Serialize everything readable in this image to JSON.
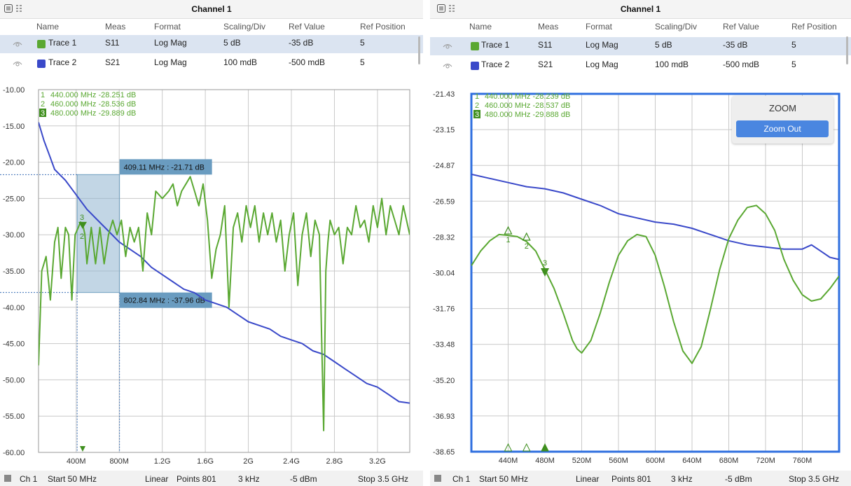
{
  "colors": {
    "trace1": "#5aa832",
    "trace2": "#3a49c9",
    "accent": "#2f6fdf",
    "selection": "#dbe4f1",
    "marker": "#3f8f1e"
  },
  "icons": {
    "menu": "list-icon",
    "grid": "grid-icon",
    "eye": "eye-icon"
  },
  "left": {
    "title": "Channel 1",
    "headers": [
      "Name",
      "Meas",
      "Format",
      "Scaling/Div",
      "Ref Value",
      "Ref Position"
    ],
    "rows": [
      {
        "name": "Trace 1",
        "meas": "S11",
        "format": "Log Mag",
        "scaling": "5 dB",
        "ref_value": "-35 dB",
        "ref_position": "5"
      },
      {
        "name": "Trace 2",
        "meas": "S21",
        "format": "Log Mag",
        "scaling": "100 mdB",
        "ref_value": "-500 mdB",
        "ref_position": "5"
      }
    ],
    "markers": [
      {
        "num": "1",
        "text": "440.000 MHz  -28.251 dB"
      },
      {
        "num": "2",
        "text": "460.000 MHz  -28.536 dB"
      },
      {
        "num": "3",
        "text": "480.000 MHz  -29.889 dB"
      }
    ],
    "zoom_labels": {
      "top": "409.11 MHz : -21.71 dB",
      "bottom": "802.84 MHz : -37.96 dB"
    },
    "footer": {
      "ch": "Ch 1",
      "start": "Start 50 MHz",
      "sweep": "Linear",
      "points": "Points 801",
      "ifbw": "3 kHz",
      "power": "-5 dBm",
      "stop": "Stop 3.5 GHz"
    }
  },
  "right": {
    "title": "Channel 1",
    "headers": [
      "Name",
      "Meas",
      "Format",
      "Scaling/Div",
      "Ref Value",
      "Ref Position"
    ],
    "rows": [
      {
        "name": "Trace 1",
        "meas": "S11",
        "format": "Log Mag",
        "scaling": "5 dB",
        "ref_value": "-35 dB",
        "ref_position": "5"
      },
      {
        "name": "Trace 2",
        "meas": "S21",
        "format": "Log Mag",
        "scaling": "100 mdB",
        "ref_value": "-500 mdB",
        "ref_position": "5"
      }
    ],
    "markers": [
      {
        "num": "1",
        "text": "440.000 MHz  -28.239 dB"
      },
      {
        "num": "2",
        "text": "460.000 MHz  -28.537 dB"
      },
      {
        "num": "3",
        "text": "480.000 MHz  -29.888 dB"
      }
    ],
    "zoom": {
      "title": "ZOOM",
      "button": "Zoom Out"
    },
    "footer": {
      "ch": "Ch 1",
      "start": "Start 50 MHz",
      "sweep": "Linear",
      "points": "Points 801",
      "ifbw": "3 kHz",
      "power": "-5 dBm",
      "stop": "Stop 3.5 GHz"
    }
  },
  "chart_data": [
    {
      "type": "line",
      "title": "Channel 1",
      "xlabel": "",
      "ylabel": "",
      "xlim": [
        50,
        3500
      ],
      "ylim": [
        -60,
        -10
      ],
      "ytick_labels": [
        "-10.00",
        "-15.00",
        "-20.00",
        "-25.00",
        "-30.00",
        "-35.00",
        "-40.00",
        "-45.00",
        "-50.00",
        "-55.00",
        "-60.00"
      ],
      "xtick_values": [
        400,
        800,
        1200,
        1600,
        2000,
        2400,
        2800,
        3200
      ],
      "xtick_labels": [
        "400M",
        "800M",
        "1.2G",
        "1.6G",
        "2G",
        "2.4G",
        "2.8G",
        "3.2G"
      ],
      "grid": true,
      "series": [
        {
          "name": "Trace 1",
          "x": [
            50,
            80,
            120,
            160,
            200,
            230,
            260,
            300,
            330,
            360,
            390,
            420,
            440,
            460,
            480,
            500,
            540,
            580,
            620,
            660,
            700,
            740,
            780,
            820,
            860,
            900,
            940,
            980,
            1020,
            1060,
            1100,
            1140,
            1200,
            1260,
            1300,
            1340,
            1380,
            1420,
            1460,
            1500,
            1540,
            1580,
            1620,
            1660,
            1700,
            1740,
            1780,
            1820,
            1860,
            1900,
            1940,
            1980,
            2020,
            2060,
            2100,
            2140,
            2180,
            2220,
            2260,
            2300,
            2340,
            2380,
            2420,
            2460,
            2500,
            2540,
            2580,
            2620,
            2660,
            2700,
            2720,
            2740,
            2760,
            2800,
            2840,
            2880,
            2920,
            2960,
            3000,
            3040,
            3080,
            3120,
            3160,
            3200,
            3240,
            3280,
            3320,
            3360,
            3400,
            3440,
            3500
          ],
          "y": [
            -48,
            -35,
            -33,
            -39,
            -31,
            -29,
            -36,
            -29,
            -30,
            -39,
            -30,
            -29,
            -28.25,
            -28.54,
            -29.89,
            -34,
            -29,
            -34,
            -29,
            -34,
            -30,
            -28,
            -30,
            -28,
            -33,
            -29,
            -31,
            -29,
            -35,
            -27,
            -30,
            -24,
            -25,
            -24,
            -23,
            -26,
            -24,
            -23,
            -22,
            -24,
            -26,
            -23,
            -28,
            -36,
            -32,
            -30,
            -26,
            -40,
            -29,
            -27,
            -31,
            -26,
            -29,
            -26,
            -31,
            -27,
            -30,
            -27,
            -31,
            -28,
            -35,
            -30,
            -27,
            -37,
            -30,
            -27,
            -33,
            -28,
            -30,
            -57,
            -35,
            -31,
            -28,
            -30,
            -29,
            -34,
            -29,
            -30,
            -26,
            -29,
            -28,
            -31,
            -26,
            -29,
            -25,
            -30,
            -26,
            -28,
            -30,
            -26,
            -30
          ]
        },
        {
          "name": "Trace 2",
          "x": [
            50,
            100,
            150,
            200,
            300,
            400,
            500,
            600,
            700,
            800,
            900,
            1000,
            1100,
            1200,
            1300,
            1400,
            1500,
            1600,
            1700,
            1800,
            1900,
            2000,
            2100,
            2200,
            2300,
            2400,
            2500,
            2600,
            2700,
            2800,
            2900,
            3000,
            3100,
            3200,
            3300,
            3400,
            3500
          ],
          "y": [
            -14.5,
            -17,
            -19,
            -21,
            -22.5,
            -24.5,
            -26.5,
            -28,
            -29.5,
            -31,
            -32,
            -33,
            -34.5,
            -35.5,
            -36.5,
            -37.5,
            -38,
            -39,
            -39.5,
            -40,
            -41,
            -42,
            -42.5,
            -43,
            -44,
            -44.5,
            -45,
            -46,
            -46.5,
            -47.5,
            -48.5,
            -49.5,
            -50.5,
            -51,
            -52,
            -53,
            -53.2
          ]
        }
      ]
    },
    {
      "type": "line",
      "title": "Channel 1",
      "xlabel": "",
      "ylabel": "",
      "xlim": [
        400,
        800
      ],
      "ylim": [
        -38.65,
        -21.43
      ],
      "ytick_labels": [
        "-21.43",
        "-23.15",
        "-24.87",
        "-26.59",
        "-28.32",
        "-30.04",
        "-31.76",
        "-33.48",
        "-35.20",
        "-36.93",
        "-38.65"
      ],
      "xtick_values": [
        440,
        480,
        520,
        560,
        600,
        640,
        680,
        720,
        760
      ],
      "xtick_labels": [
        "440M",
        "480M",
        "520M",
        "560M",
        "600M",
        "640M",
        "680M",
        "720M",
        "760M"
      ],
      "grid": true,
      "series": [
        {
          "name": "Trace 1",
          "x": [
            400,
            410,
            420,
            430,
            440,
            450,
            460,
            470,
            480,
            490,
            500,
            510,
            515,
            520,
            530,
            540,
            550,
            560,
            570,
            580,
            590,
            600,
            610,
            620,
            630,
            640,
            650,
            660,
            670,
            680,
            690,
            700,
            710,
            720,
            730,
            740,
            750,
            760,
            770,
            780,
            790,
            800
          ],
          "y": [
            -29.7,
            -29.0,
            -28.5,
            -28.2,
            -28.24,
            -28.3,
            -28.54,
            -29.0,
            -29.89,
            -30.8,
            -32.0,
            -33.3,
            -33.7,
            -33.9,
            -33.3,
            -32.0,
            -30.5,
            -29.2,
            -28.5,
            -28.2,
            -28.3,
            -29.2,
            -30.7,
            -32.4,
            -33.8,
            -34.4,
            -33.6,
            -31.8,
            -29.9,
            -28.4,
            -27.5,
            -26.9,
            -26.8,
            -27.2,
            -28.0,
            -29.4,
            -30.4,
            -31.1,
            -31.4,
            -31.3,
            -30.8,
            -30.2
          ]
        },
        {
          "name": "Trace 2",
          "x": [
            400,
            420,
            440,
            460,
            480,
            500,
            520,
            540,
            560,
            580,
            600,
            620,
            640,
            660,
            680,
            700,
            720,
            740,
            760,
            770,
            780,
            790,
            800
          ],
          "y": [
            -25.3,
            -25.5,
            -25.7,
            -25.9,
            -26.0,
            -26.2,
            -26.5,
            -26.8,
            -27.2,
            -27.4,
            -27.6,
            -27.7,
            -27.9,
            -28.2,
            -28.5,
            -28.7,
            -28.8,
            -28.9,
            -28.9,
            -28.7,
            -29.0,
            -29.3,
            -29.4
          ]
        }
      ]
    }
  ]
}
